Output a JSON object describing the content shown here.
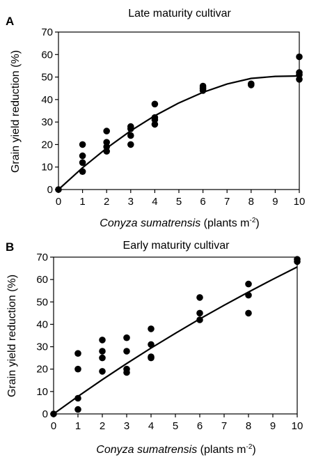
{
  "chart_data": [
    {
      "type": "scatter",
      "panel": "A",
      "title": "Late maturity cultivar",
      "xlabel_italic": "Conyza sumatrensis",
      "xlabel_rest": " (plants m",
      "xlabel_sup": "-2",
      "xlabel_close": ")",
      "ylabel": "Grain yield reduction (%)",
      "xlim": [
        0,
        10
      ],
      "ylim": [
        0,
        70
      ],
      "xticks": [
        "0",
        "1",
        "2",
        "3",
        "4",
        "5",
        "6",
        "7",
        "8",
        "9",
        "10"
      ],
      "yticks": [
        "0",
        "10",
        "20",
        "30",
        "40",
        "50",
        "60",
        "70"
      ],
      "grid": false,
      "points": [
        [
          0,
          0
        ],
        [
          1,
          20
        ],
        [
          1,
          15
        ],
        [
          1,
          12
        ],
        [
          1,
          8
        ],
        [
          2,
          26
        ],
        [
          2,
          21
        ],
        [
          2,
          19
        ],
        [
          2,
          17
        ],
        [
          3,
          28
        ],
        [
          3,
          27
        ],
        [
          3,
          24
        ],
        [
          3,
          20
        ],
        [
          4,
          38
        ],
        [
          4,
          32
        ],
        [
          4,
          31
        ],
        [
          4,
          29
        ],
        [
          6,
          46
        ],
        [
          6,
          45
        ],
        [
          6,
          44
        ],
        [
          8,
          47
        ],
        [
          8,
          46.5
        ],
        [
          10,
          59
        ],
        [
          10,
          52
        ],
        [
          10,
          51
        ],
        [
          10,
          49
        ]
      ],
      "fit": [
        [
          0,
          0
        ],
        [
          1,
          9.7
        ],
        [
          2,
          18.4
        ],
        [
          3,
          26.1
        ],
        [
          4,
          32.8
        ],
        [
          5,
          38.5
        ],
        [
          6,
          43.2
        ],
        [
          7,
          46.9
        ],
        [
          8,
          49.4
        ],
        [
          9,
          50.3
        ],
        [
          10,
          50.5
        ]
      ]
    },
    {
      "type": "scatter",
      "panel": "B",
      "title": "Early maturity cultivar",
      "xlabel_italic": "Conyza sumatrensis",
      "xlabel_rest": " (plants m",
      "xlabel_sup": "-2",
      "xlabel_close": ")",
      "ylabel": "Grain yield reduction (%)",
      "xlim": [
        0,
        10
      ],
      "ylim": [
        0,
        70
      ],
      "xticks": [
        "0",
        "1",
        "2",
        "3",
        "4",
        "5",
        "6",
        "7",
        "8",
        "9",
        "10"
      ],
      "yticks": [
        "0",
        "10",
        "20",
        "30",
        "40",
        "50",
        "60",
        "70"
      ],
      "grid": false,
      "points": [
        [
          0,
          0
        ],
        [
          1,
          27
        ],
        [
          1,
          20
        ],
        [
          1,
          7
        ],
        [
          1,
          2
        ],
        [
          2,
          33
        ],
        [
          2,
          28
        ],
        [
          2,
          25
        ],
        [
          2,
          19
        ],
        [
          3,
          34
        ],
        [
          3,
          28
        ],
        [
          3,
          20
        ],
        [
          3,
          18.5
        ],
        [
          4,
          38
        ],
        [
          4,
          31
        ],
        [
          4,
          25.5
        ],
        [
          4,
          25
        ],
        [
          6,
          52
        ],
        [
          6,
          45
        ],
        [
          6,
          42
        ],
        [
          8,
          58
        ],
        [
          8,
          53
        ],
        [
          8,
          45
        ],
        [
          10,
          69
        ],
        [
          10,
          68
        ]
      ],
      "fit": [
        [
          0,
          0
        ],
        [
          1,
          7.8
        ],
        [
          2,
          15.3
        ],
        [
          3,
          22.5
        ],
        [
          4,
          29.4
        ],
        [
          5,
          36.0
        ],
        [
          6,
          42.4
        ],
        [
          7,
          48.5
        ],
        [
          8,
          54.4
        ],
        [
          9,
          60.1
        ],
        [
          10,
          65.6
        ]
      ]
    }
  ]
}
